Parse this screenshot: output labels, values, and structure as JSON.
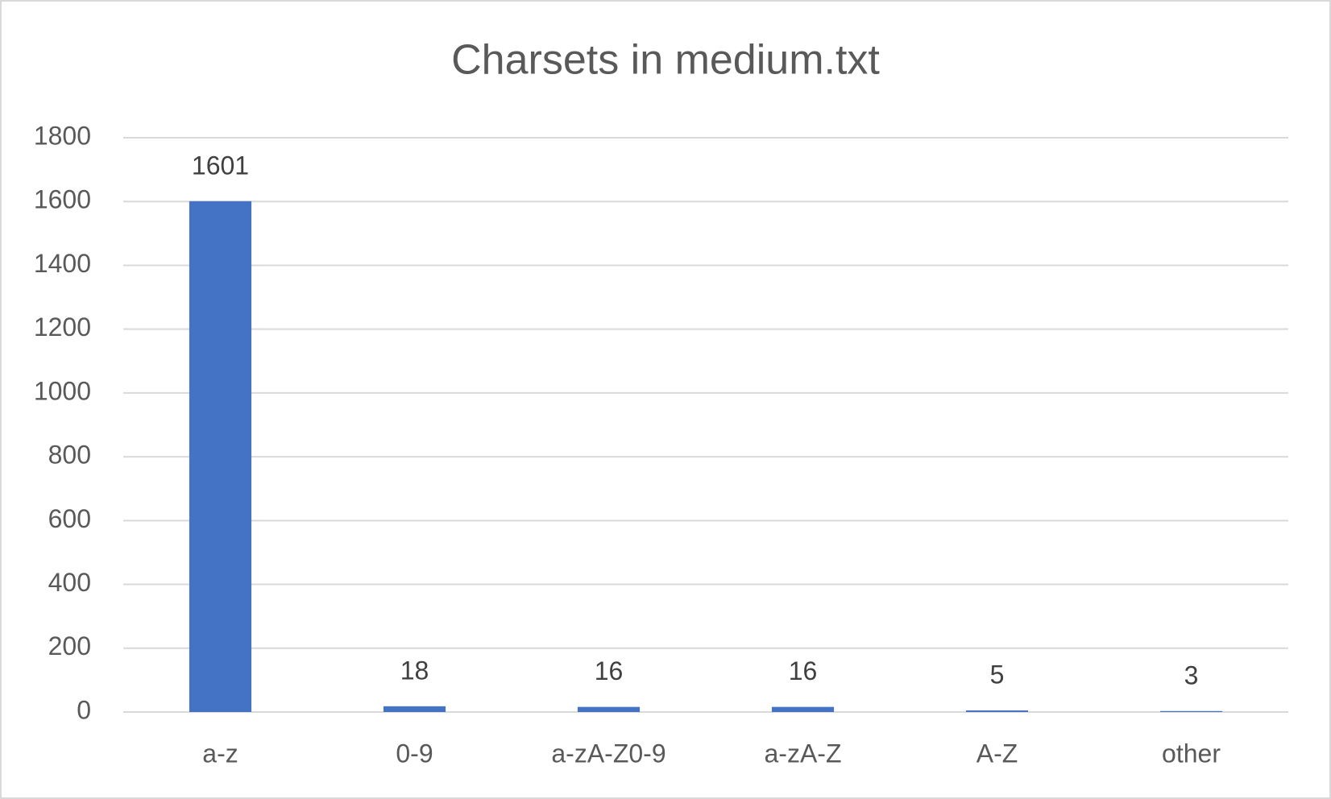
{
  "chart_data": {
    "type": "bar",
    "title": "Charsets in medium.txt",
    "categories": [
      "a-z",
      "0-9",
      "a-zA-Z0-9",
      "a-zA-Z",
      "A-Z",
      "other"
    ],
    "values": [
      1601,
      18,
      16,
      16,
      5,
      3
    ],
    "color": "#4472c4",
    "ylim": [
      0,
      1800
    ],
    "yticks": [
      0,
      200,
      400,
      600,
      800,
      1000,
      1200,
      1400,
      1600,
      1800
    ],
    "grid": true
  }
}
